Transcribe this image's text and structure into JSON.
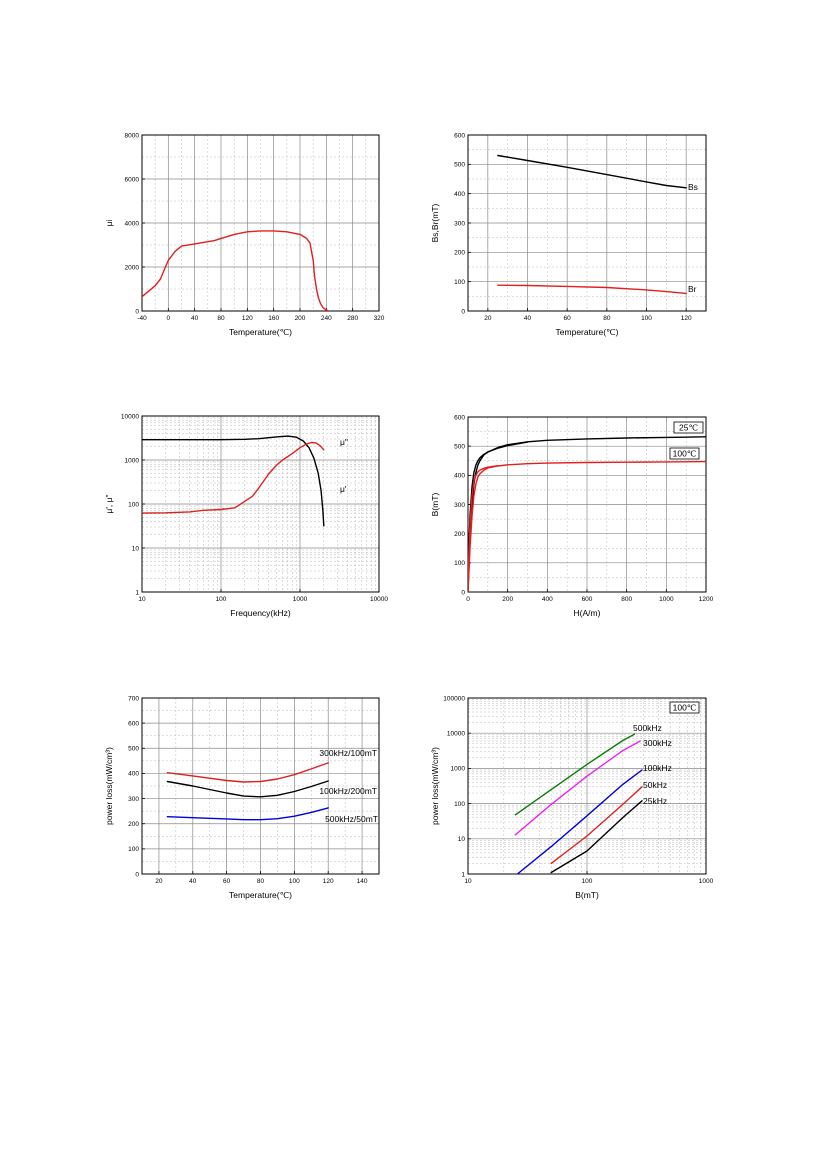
{
  "chart_data": [
    {
      "type": "line",
      "xlabel": "Temperature(℃)",
      "ylabel": "μi",
      "xlim": [
        -40,
        320
      ],
      "ylim": [
        0,
        8000
      ],
      "xticks": [
        -40,
        0,
        40,
        80,
        120,
        160,
        200,
        240,
        280,
        320
      ],
      "yticks": [
        0,
        2000,
        4000,
        6000,
        8000
      ],
      "xscale": "linear",
      "yscale": "linear",
      "grid": true,
      "series": [
        {
          "color": "#e0201e",
          "x": [
            -40,
            -30,
            -20,
            -12,
            -5,
            0,
            10,
            20,
            40,
            60,
            70,
            80,
            100,
            120,
            140,
            160,
            180,
            200,
            210,
            215,
            220,
            222,
            225,
            228,
            231,
            235,
            240,
            244
          ],
          "y": [
            650,
            900,
            1150,
            1450,
            1950,
            2300,
            2700,
            2950,
            3050,
            3150,
            3200,
            3300,
            3480,
            3600,
            3640,
            3640,
            3600,
            3480,
            3300,
            3100,
            2300,
            1600,
            1000,
            600,
            350,
            150,
            40,
            0
          ]
        }
      ]
    },
    {
      "type": "line",
      "xlabel": "Temperature(℃)",
      "ylabel": "Bs,Br(mT)",
      "xlim": [
        10,
        130
      ],
      "ylim": [
        0,
        600
      ],
      "xticks": [
        20,
        40,
        60,
        80,
        100,
        120
      ],
      "yticks": [
        0,
        100,
        200,
        300,
        400,
        500,
        600
      ],
      "xscale": "linear",
      "yscale": "linear",
      "grid": true,
      "annotations": [
        "Bs",
        "Br"
      ],
      "series": [
        {
          "name": "Bs",
          "color": "#000000",
          "x": [
            25,
            40,
            60,
            80,
            100,
            110,
            120
          ],
          "y": [
            530,
            513,
            490,
            465,
            440,
            428,
            420
          ]
        },
        {
          "name": "Br",
          "color": "#e0201e",
          "x": [
            25,
            40,
            60,
            80,
            100,
            110,
            120
          ],
          "y": [
            88,
            87,
            84,
            80,
            72,
            66,
            60
          ]
        }
      ]
    },
    {
      "type": "line",
      "xlabel": "Frequency(kHz)",
      "ylabel": "μ',  μ\"",
      "xlim": [
        10,
        10000
      ],
      "ylim": [
        1,
        10000
      ],
      "xticks": [
        10,
        100,
        1000,
        10000
      ],
      "yticks": [
        1,
        10,
        100,
        1000,
        10000
      ],
      "xscale": "log",
      "yscale": "log",
      "grid": true,
      "annotations": [
        "μ\"",
        "μ'"
      ],
      "series": [
        {
          "name": "μ'",
          "color": "#000000",
          "x": [
            10,
            50,
            100,
            200,
            300,
            500,
            700,
            900,
            1100,
            1300,
            1500,
            1700,
            1850,
            1950,
            2000
          ],
          "y": [
            2900,
            2900,
            2900,
            2950,
            3050,
            3350,
            3500,
            3300,
            2700,
            1900,
            1100,
            500,
            200,
            70,
            32
          ]
        },
        {
          "name": "μ\"",
          "color": "#e0201e",
          "x": [
            10,
            20,
            40,
            60,
            100,
            150,
            200,
            250,
            300,
            400,
            500,
            600,
            800,
            1000,
            1200,
            1400,
            1600,
            1800,
            2000
          ],
          "y": [
            62,
            63,
            66,
            72,
            75,
            82,
            115,
            150,
            230,
            480,
            750,
            1000,
            1400,
            1900,
            2300,
            2500,
            2450,
            2100,
            1700
          ]
        }
      ]
    },
    {
      "type": "line",
      "xlabel": "H(A/m)",
      "ylabel": "B(mT)",
      "xlim": [
        0,
        1200
      ],
      "ylim": [
        0,
        600
      ],
      "xticks": [
        0,
        200,
        400,
        600,
        800,
        1000,
        1200
      ],
      "yticks": [
        0,
        100,
        200,
        300,
        400,
        500,
        600
      ],
      "xscale": "linear",
      "yscale": "linear",
      "grid": true,
      "legend": [
        "25℃",
        "100℃"
      ],
      "series": [
        {
          "name": "25℃",
          "color": "#000000",
          "x": [
            0,
            10,
            20,
            30,
            40,
            50,
            60,
            80,
            100,
            150,
            200,
            300,
            400,
            600,
            800,
            1000,
            1200
          ],
          "y": [
            0,
            180,
            300,
            370,
            410,
            435,
            450,
            470,
            480,
            495,
            505,
            515,
            520,
            525,
            528,
            530,
            532
          ]
        },
        {
          "name": "25℃",
          "color": "#000000",
          "x": [
            0,
            10,
            20,
            30,
            40,
            50,
            60,
            80,
            100,
            150,
            200,
            300
          ],
          "y": [
            60,
            260,
            360,
            410,
            435,
            450,
            460,
            472,
            480,
            493,
            502,
            514
          ]
        },
        {
          "name": "100℃",
          "color": "#e0201e",
          "x": [
            0,
            10,
            20,
            30,
            40,
            50,
            60,
            80,
            100,
            150,
            200,
            300,
            400,
            600,
            800,
            1000,
            1200
          ],
          "y": [
            0,
            150,
            260,
            330,
            370,
            395,
            405,
            418,
            425,
            432,
            436,
            440,
            442,
            444,
            445,
            446,
            447
          ]
        },
        {
          "name": "100℃",
          "color": "#e0201e",
          "x": [
            0,
            10,
            20,
            30,
            40,
            50,
            60,
            80,
            100,
            150
          ],
          "y": [
            50,
            230,
            330,
            380,
            400,
            412,
            418,
            424,
            428,
            433
          ]
        }
      ]
    },
    {
      "type": "line",
      "xlabel": "Temperature(℃)",
      "ylabel": "power loss(mW/cm³)",
      "xlim": [
        10,
        150
      ],
      "ylim": [
        0,
        700
      ],
      "xticks": [
        20,
        40,
        60,
        80,
        100,
        120,
        140
      ],
      "yticks": [
        0,
        100,
        200,
        300,
        400,
        500,
        600,
        700
      ],
      "xscale": "linear",
      "yscale": "linear",
      "grid": true,
      "annotations": [
        "300kHz/100mT",
        "100kHz/200mT",
        "500kHz/50mT"
      ],
      "series": [
        {
          "name": "300kHz/100mT",
          "color": "#e0201e",
          "x": [
            25,
            40,
            60,
            70,
            80,
            90,
            100,
            110,
            120
          ],
          "y": [
            403,
            390,
            372,
            366,
            368,
            378,
            395,
            418,
            442
          ]
        },
        {
          "name": "100kHz/200mT",
          "color": "#000000",
          "x": [
            25,
            40,
            60,
            70,
            80,
            90,
            100,
            110,
            120
          ],
          "y": [
            368,
            350,
            322,
            310,
            307,
            313,
            328,
            348,
            370
          ]
        },
        {
          "name": "500kHz/50mT",
          "color": "#0000dd",
          "x": [
            25,
            40,
            60,
            70,
            80,
            90,
            100,
            110,
            120
          ],
          "y": [
            228,
            224,
            219,
            216,
            216,
            220,
            230,
            245,
            263
          ]
        }
      ]
    },
    {
      "type": "line",
      "xlabel": "B(mT)",
      "ylabel": "power loss(mW/cm³)",
      "xlim": [
        10,
        1000
      ],
      "ylim": [
        1,
        100000
      ],
      "xticks": [
        10,
        100,
        1000
      ],
      "yticks": [
        1,
        10,
        100,
        1000,
        10000,
        100000
      ],
      "xscale": "log",
      "yscale": "log",
      "grid": true,
      "legend": [
        "100℃"
      ],
      "annotations": [
        "500kHz",
        "300kHz",
        "100kHz",
        "50kHz",
        "25kHz"
      ],
      "series": [
        {
          "name": "500kHz",
          "color": "#0a7a0a",
          "x": [
            25,
            50,
            100,
            200,
            250
          ],
          "y": [
            48,
            250,
            1300,
            6200,
            9300
          ]
        },
        {
          "name": "300kHz",
          "color": "#ee22ee",
          "x": [
            25,
            50,
            100,
            200,
            280
          ],
          "y": [
            13,
            95,
            600,
            3200,
            6000
          ]
        },
        {
          "name": "100kHz",
          "color": "#0000dd",
          "x": [
            26,
            50,
            100,
            200,
            290
          ],
          "y": [
            1,
            6,
            45,
            350,
            900
          ]
        },
        {
          "name": "50kHz",
          "color": "#e0201e",
          "x": [
            50,
            100,
            200,
            290
          ],
          "y": [
            2,
            12,
            95,
            300
          ]
        },
        {
          "name": "25kHz",
          "color": "#000000",
          "x": [
            50,
            100,
            200,
            290
          ],
          "y": [
            1.1,
            4.5,
            40,
            120
          ]
        }
      ]
    }
  ]
}
